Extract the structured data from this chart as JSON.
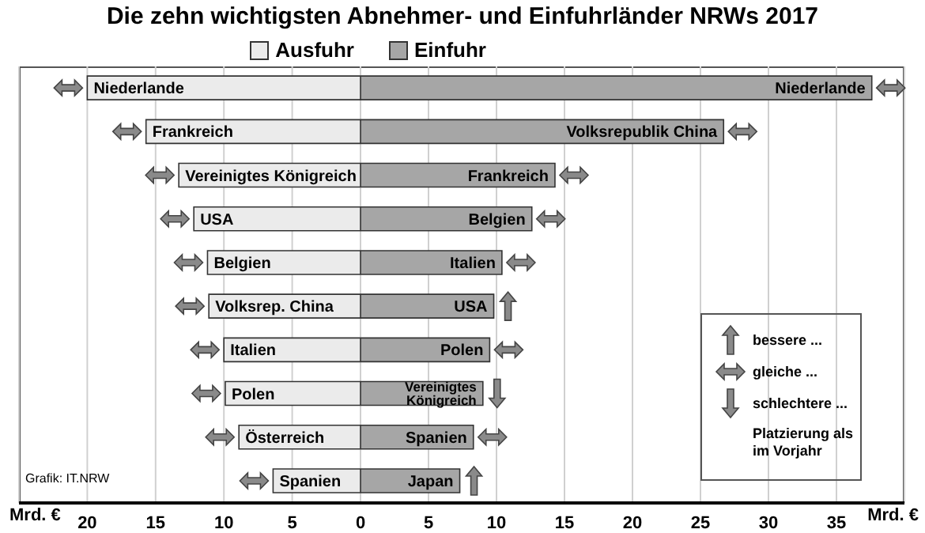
{
  "chart_data": [
    {
      "type": "bar",
      "orientation": "horizontal",
      "title": "Die zehn wichtigsten Abnehmer- und Einfuhrländer NRWs 2017",
      "xlabel": "Mrd. €",
      "categories": [
        "Niederlande",
        "Frankreich",
        "Vereinigtes Königreich",
        "USA",
        "Belgien",
        "Volksrep. China",
        "Italien",
        "Polen",
        "Österreich",
        "Spanien"
      ],
      "series": [
        {
          "name": "Ausfuhr",
          "color": "#ebebeb",
          "values": [
            20.0,
            15.7,
            13.3,
            12.2,
            11.2,
            11.1,
            10.0,
            9.9,
            8.9,
            6.4
          ]
        }
      ],
      "xlim": [
        25,
        0
      ],
      "xticks": [
        20,
        15,
        10,
        5,
        0
      ],
      "grid": "x",
      "legend": "top",
      "annotations": [
        "Grafik: IT.NRW"
      ]
    },
    {
      "type": "bar",
      "orientation": "horizontal",
      "xlabel": "Mrd. €",
      "categories": [
        "Niederlande",
        "Volksrepublik China",
        "Frankreich",
        "Belgien",
        "Italien",
        "USA",
        "Polen",
        "Vereinigtes Königreich",
        "Spanien",
        "Japan"
      ],
      "series": [
        {
          "name": "Einfuhr",
          "color": "#a6a6a6",
          "values": [
            37.6,
            26.7,
            14.3,
            12.6,
            10.4,
            9.8,
            9.5,
            9.0,
            8.3,
            7.3
          ]
        }
      ],
      "xlim": [
        0,
        40
      ],
      "xticks": [
        5,
        10,
        15,
        20,
        25,
        30,
        35
      ],
      "grid": "x",
      "legend": "top",
      "annotations": [
        "bessere ...",
        "gleiche ...",
        "schlechtere ...",
        "Platzierung als im Vorjahr"
      ]
    }
  ]
}
